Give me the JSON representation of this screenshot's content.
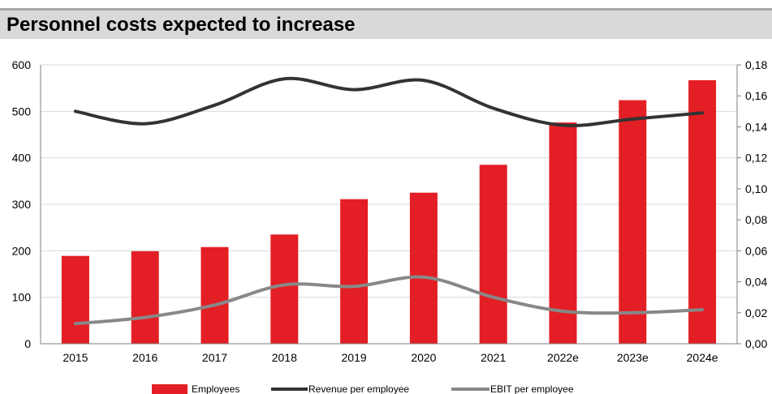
{
  "title": "Personnel costs expected to increase",
  "colors": {
    "bar": "#e31e24",
    "revenue_line": "#333333",
    "ebit_line": "#888888",
    "title_bg": "#d9d9d9",
    "axis": "#7f7f7f",
    "grid": "#d9d9d9"
  },
  "chart_data": {
    "type": "bar",
    "categories": [
      "2015",
      "2016",
      "2017",
      "2018",
      "2019",
      "2020",
      "2021",
      "2022e",
      "2023e",
      "2024e"
    ],
    "series": [
      {
        "name": "Employees",
        "type": "bar",
        "axis": "left",
        "values": [
          189,
          199,
          208,
          235,
          311,
          325,
          385,
          476,
          524,
          567
        ]
      },
      {
        "name": "Revenue per employee",
        "type": "line",
        "axis": "right",
        "values": [
          0.15,
          0.142,
          0.154,
          0.171,
          0.164,
          0.17,
          0.152,
          0.141,
          0.145,
          0.149
        ]
      },
      {
        "name": "EBIT per employee",
        "type": "line",
        "axis": "right",
        "values": [
          0.013,
          0.017,
          0.025,
          0.038,
          0.037,
          0.043,
          0.03,
          0.021,
          0.02,
          0.022
        ]
      }
    ],
    "ylim_left": [
      0,
      600
    ],
    "yticks_left": [
      "0",
      "100",
      "200",
      "300",
      "400",
      "500",
      "600"
    ],
    "ylim_right": [
      0,
      0.18
    ],
    "yticks_right": [
      "0,00",
      "0,02",
      "0,04",
      "0,06",
      "0,08",
      "0,10",
      "0,12",
      "0,14",
      "0,16",
      "0,18"
    ],
    "grid": true,
    "legend_position": "bottom"
  }
}
